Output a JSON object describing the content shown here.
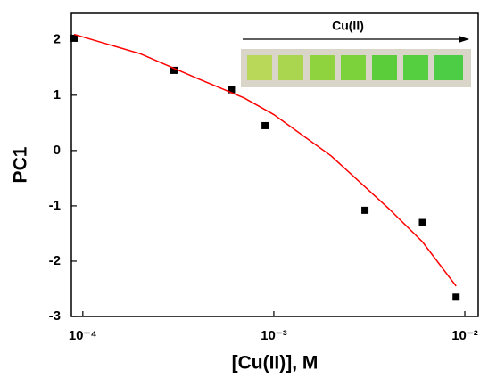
{
  "chart_data": {
    "type": "scatter",
    "xlabel": "[Cu(II)], M",
    "ylabel": "PC1",
    "annotation": "Cu(II)",
    "xscale": "log",
    "xlim": [
      8.71e-05,
      0.01175
    ],
    "ylim": [
      -3,
      2.48
    ],
    "xticks": [
      {
        "value": 0.0001,
        "label": "10⁻⁴"
      },
      {
        "value": 0.001,
        "label": "10⁻³"
      },
      {
        "value": 0.01,
        "label": "10⁻²"
      }
    ],
    "yticks": [
      2,
      1,
      0,
      -1,
      -2,
      -3
    ],
    "series": [
      {
        "mode": "markers",
        "color": "#000000",
        "x": [
          9e-05,
          0.0003,
          0.0006,
          0.0009,
          0.003,
          0.006,
          0.009
        ],
        "values": [
          2.03,
          1.45,
          1.1,
          0.45,
          -1.08,
          -1.3,
          -2.65
        ]
      },
      {
        "mode": "line",
        "color": "#ff0000",
        "x": [
          9e-05,
          0.0002,
          0.0004,
          0.0007,
          0.001,
          0.002,
          0.004,
          0.006,
          0.009
        ],
        "values": [
          2.1,
          1.75,
          1.3,
          0.95,
          0.65,
          -0.1,
          -1.05,
          -1.65,
          -2.45
        ]
      }
    ]
  }
}
